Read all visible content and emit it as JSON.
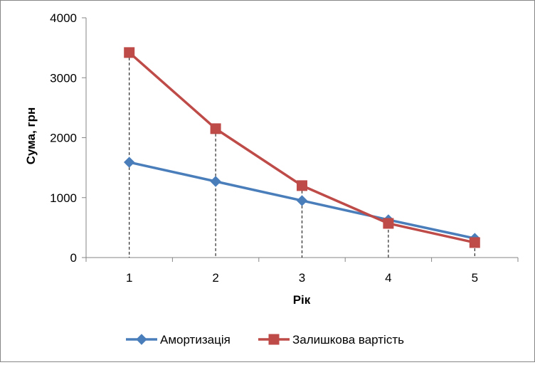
{
  "chart_data": {
    "type": "line",
    "title": "",
    "xlabel": "Рік",
    "ylabel": "Сума, грн",
    "categories": [
      "1",
      "2",
      "3",
      "4",
      "5"
    ],
    "ylim": [
      0,
      4000
    ],
    "yticks": [
      "0",
      "1000",
      "2000",
      "3000",
      "4000"
    ],
    "drop_lines": true,
    "grid": false,
    "legend_position": "bottom",
    "series": [
      {
        "name": "Амортизація",
        "color": "#4a7ebb",
        "marker": "diamond",
        "values": [
          1590,
          1270,
          950,
          630,
          320
        ]
      },
      {
        "name": "Залишкова вартість",
        "color": "#be4b48",
        "marker": "square",
        "values": [
          3420,
          2150,
          1200,
          570,
          250
        ]
      }
    ]
  }
}
